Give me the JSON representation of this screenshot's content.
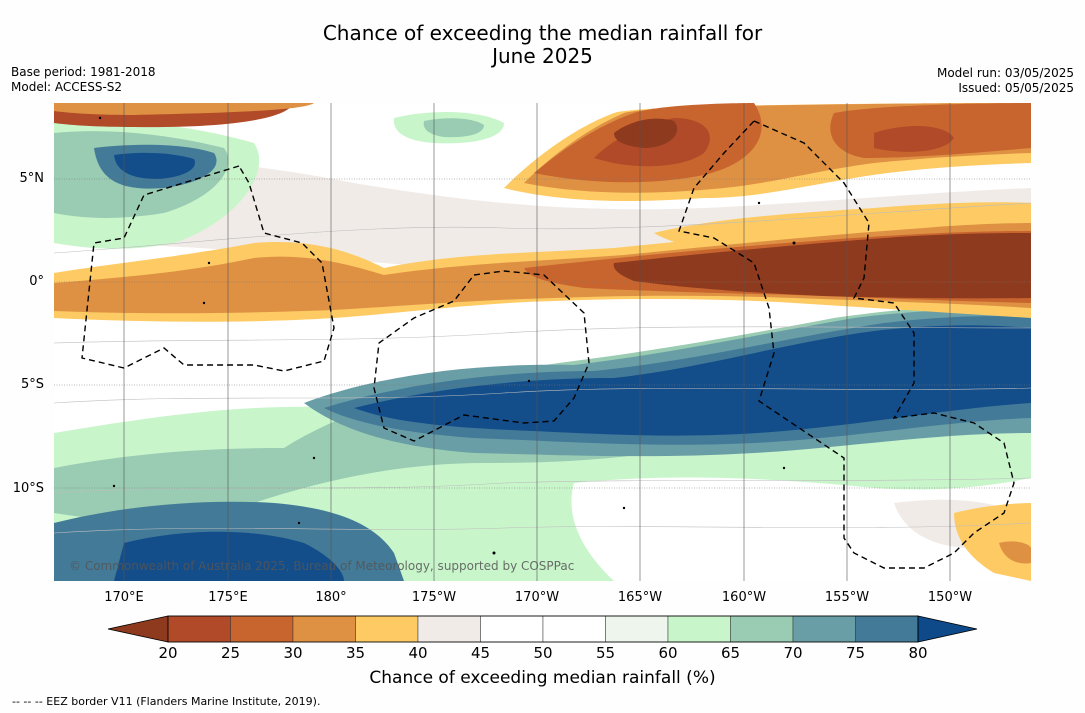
{
  "title_line1": "Chance of exceeding the median rainfall for",
  "title_line2": "June 2025",
  "meta": {
    "base_period": "Base period: 1981-2018",
    "model": "Model: ACCESS-S2",
    "model_run": "Model run: 03/05/2025",
    "issued": "Issued: 05/05/2025"
  },
  "map": {
    "lat_labels": [
      {
        "text": "5°N",
        "lat": 5
      },
      {
        "text": "0°",
        "lat": 0
      },
      {
        "text": "5°S",
        "lat": -5
      },
      {
        "text": "10°S",
        "lat": -10
      }
    ],
    "lon_labels": [
      {
        "text": "170°E",
        "lon": 170
      },
      {
        "text": "175°E",
        "lon": 175
      },
      {
        "text": "180°",
        "lon": 180
      },
      {
        "text": "175°W",
        "lon": 185
      },
      {
        "text": "170°W",
        "lon": 190
      },
      {
        "text": "165°W",
        "lon": 195
      },
      {
        "text": "160°W",
        "lon": 200
      },
      {
        "text": "155°W",
        "lon": 205
      },
      {
        "text": "150°W",
        "lon": 210
      }
    ],
    "copyright": "© Commonwealth of Australia 2025, Bureau of Meteorology, supported by COSPPac"
  },
  "colorbar": {
    "ticks": [
      "20",
      "25",
      "30",
      "35",
      "40",
      "45",
      "50",
      "55",
      "60",
      "65",
      "70",
      "75",
      "80"
    ],
    "colors": [
      "#b04a28",
      "#c8652f",
      "#df9143",
      "#fdca64",
      "#f0ebe7",
      "#ffffff",
      "#ffffff",
      "#edf5ec",
      "#c9f5cb",
      "#99ccb2",
      "#6a9ea6",
      "#437a98",
      "#134e8b"
    ],
    "under_color": "#8e3a1e",
    "over_color": "#0e4a8a",
    "label": "Chance of exceeding median rainfall (%)"
  },
  "footnote": "--  --  -- EEZ border V11 (Flanders Marine Institute, 2019)."
}
